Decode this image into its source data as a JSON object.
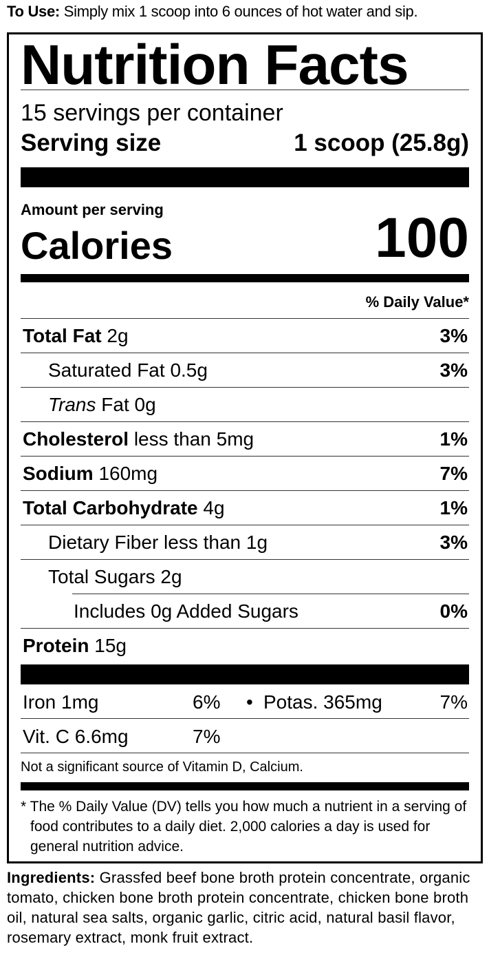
{
  "to_use": {
    "label": "To Use:",
    "text": "Simply mix 1 scoop into 6 ounces of hot water and sip."
  },
  "title": "Nutrition Facts",
  "servings_per_container": "15 servings per container",
  "serving_size": {
    "label": "Serving size",
    "value": "1 scoop (25.8g)"
  },
  "amount_per_serving": "Amount per serving",
  "calories": {
    "label": "Calories",
    "value": "100"
  },
  "daily_value_header": "% Daily Value*",
  "nutrients": [
    {
      "name": "Total Fat",
      "amount": "2g",
      "dv": "3%",
      "bold": true,
      "indent": 0
    },
    {
      "name": "Saturated Fat",
      "amount": "0.5g",
      "dv": "3%",
      "bold": false,
      "indent": 1
    },
    {
      "name": "Trans",
      "name_suffix": "Fat",
      "amount": "0g",
      "dv": "",
      "bold": false,
      "indent": 1,
      "italic_prefix": true
    },
    {
      "name": "Cholesterol",
      "amount": "less than 5mg",
      "dv": "1%",
      "bold": true,
      "indent": 0
    },
    {
      "name": "Sodium",
      "amount": "160mg",
      "dv": "7%",
      "bold": true,
      "indent": 0
    },
    {
      "name": "Total Carbohydrate",
      "amount": "4g",
      "dv": "1%",
      "bold": true,
      "indent": 0
    },
    {
      "name": "Dietary Fiber",
      "amount": "less than 1g",
      "dv": "3%",
      "bold": false,
      "indent": 1
    },
    {
      "name": "Total Sugars",
      "amount": "2g",
      "dv": "",
      "bold": false,
      "indent": 1
    },
    {
      "name": "Includes 0g Added Sugars",
      "amount": "",
      "dv": "0%",
      "bold": false,
      "indent": 2
    },
    {
      "name": "Protein",
      "amount": "15g",
      "dv": "",
      "bold": true,
      "indent": 0
    }
  ],
  "vitamins": [
    {
      "left": "Iron 1mg",
      "left_dv": "6%",
      "sep": "•",
      "right": "Potas. 365mg",
      "right_dv": "7%"
    },
    {
      "left": "Vit. C 6.6mg",
      "left_dv": "7%"
    }
  ],
  "not_significant": "Not a significant source of Vitamin D, Calcium.",
  "footnote": "* The % Daily Value (DV) tells you how much a nutrient in a serving of food contributes to a daily diet. 2,000 calories a day is used for general nutrition advice.",
  "ingredients": {
    "label": "Ingredients:",
    "text": "Grassfed beef bone broth protein concentrate, organic tomato, chicken bone broth protein concentrate, chicken bone broth oil, natural sea salts, organic garlic, citric acid, natural basil flavor, rosemary extract, monk fruit extract."
  }
}
